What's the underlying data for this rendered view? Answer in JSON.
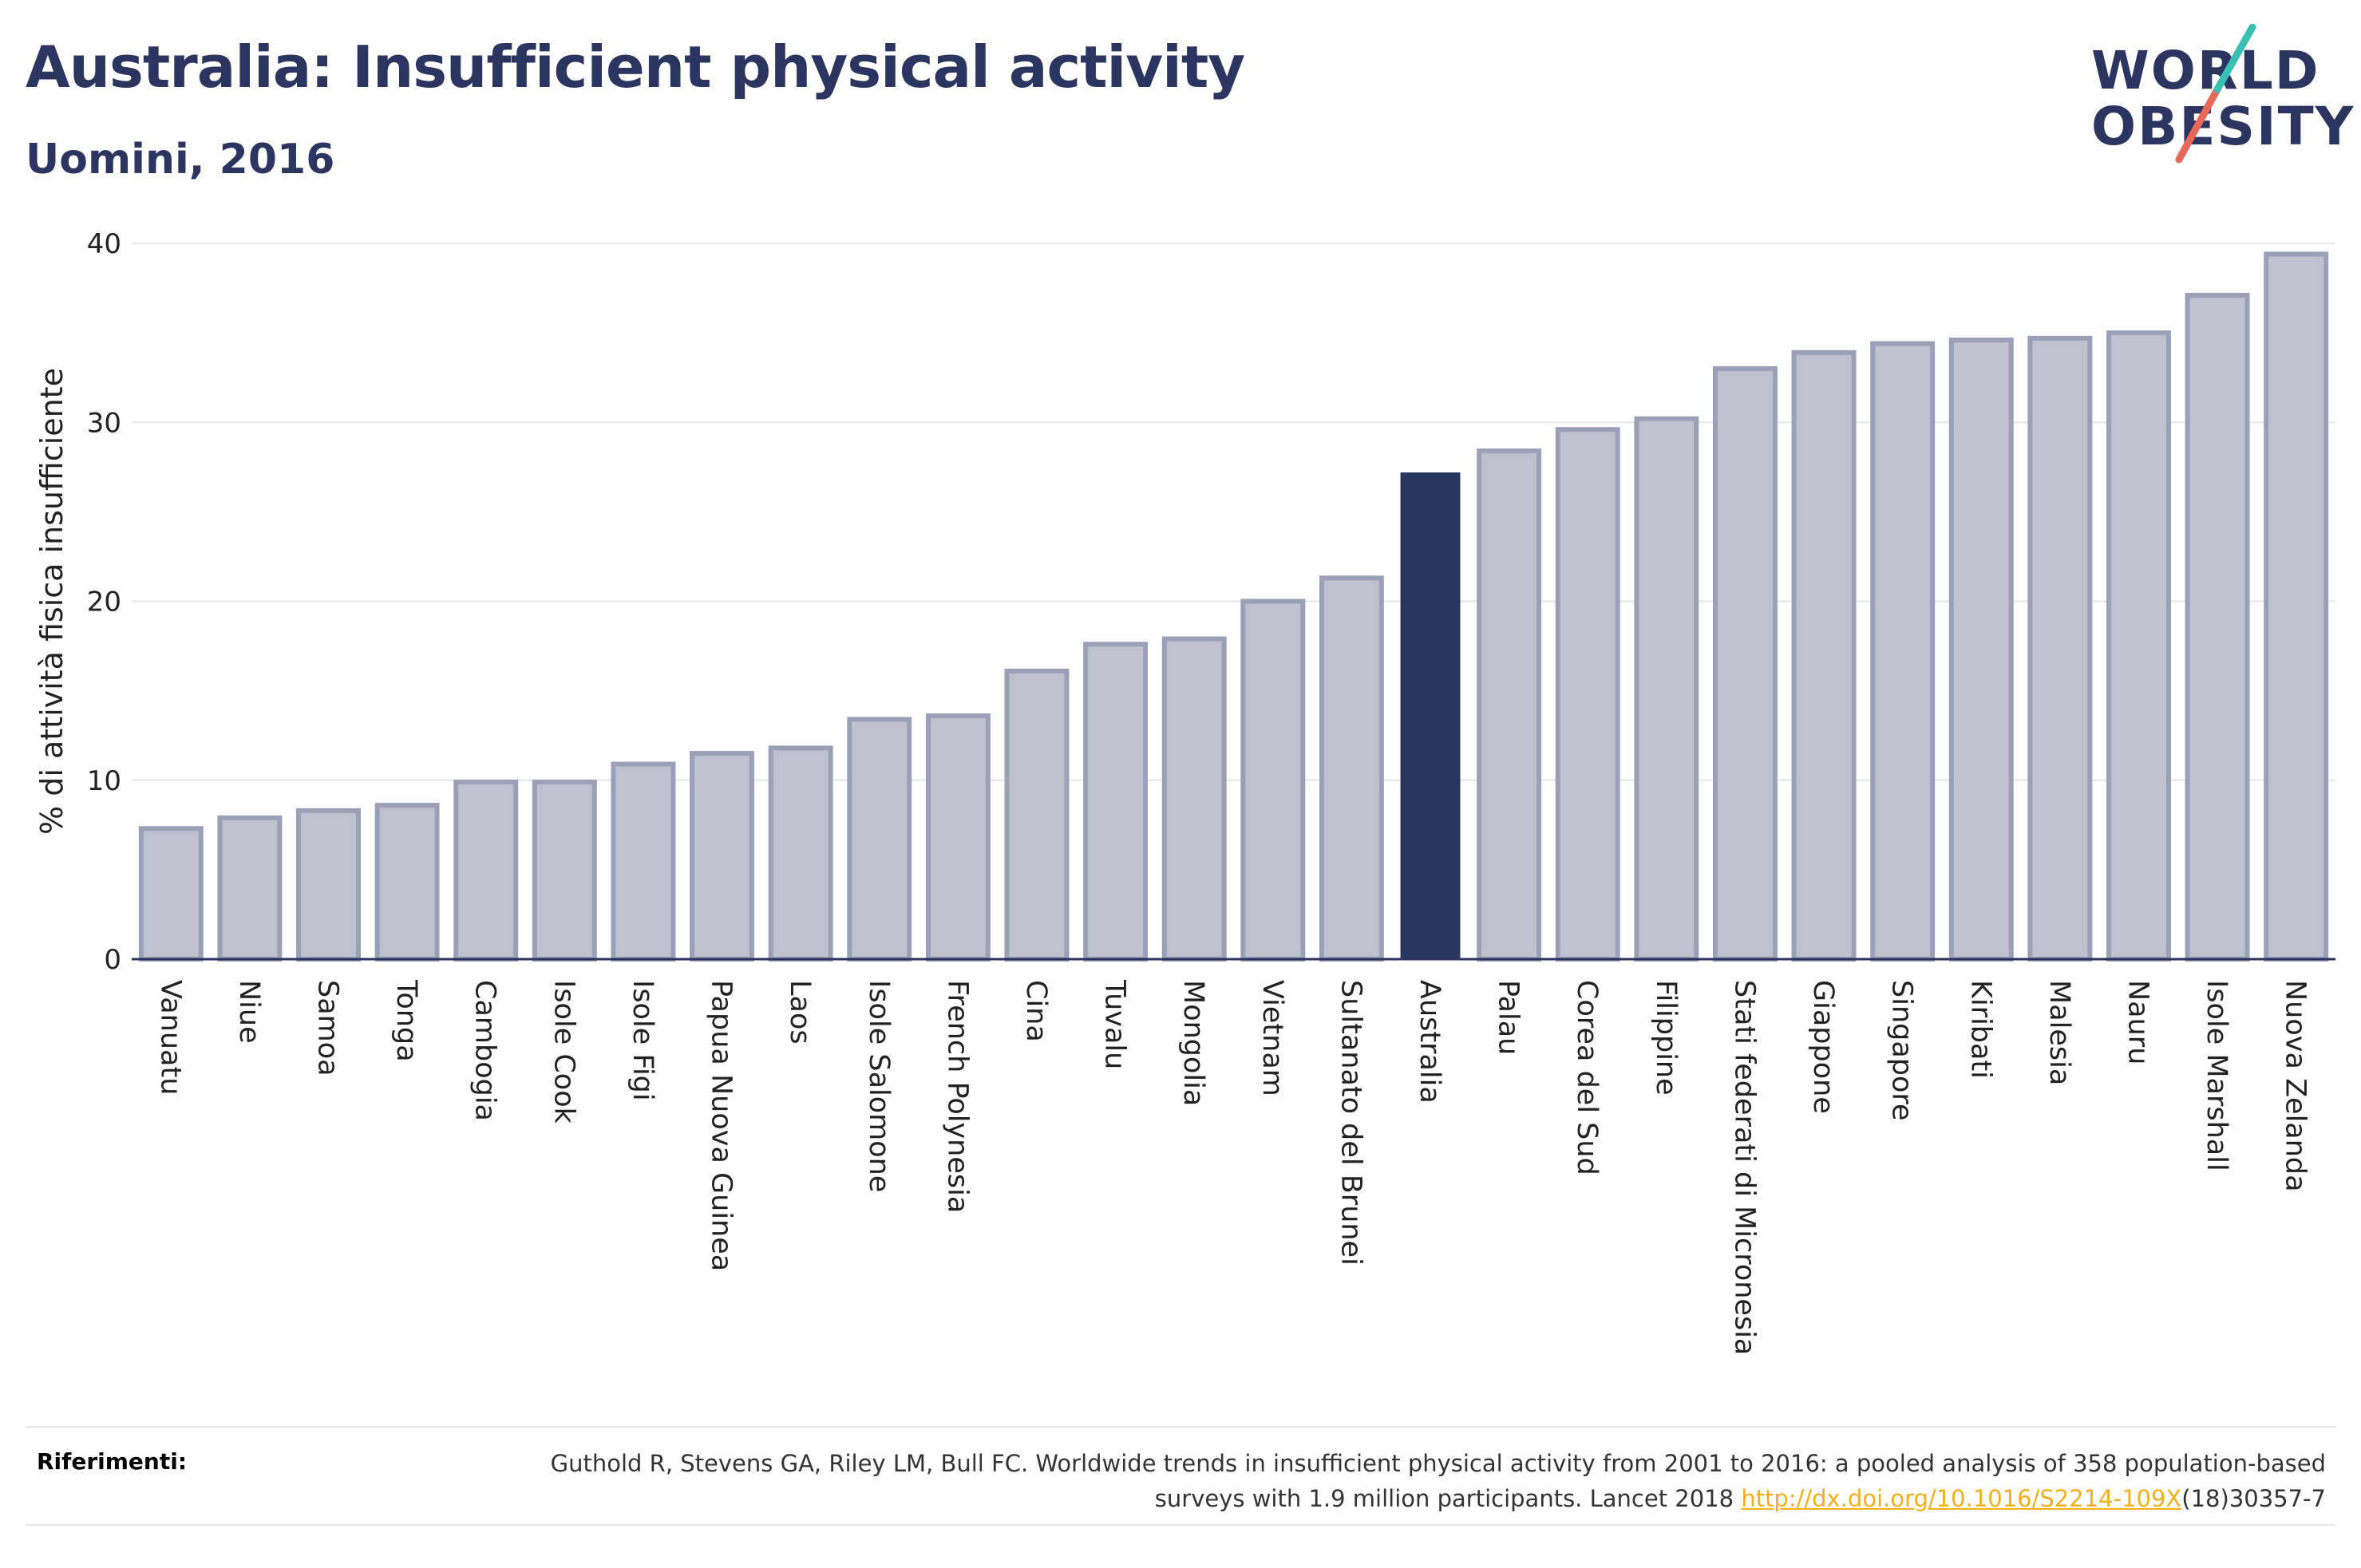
{
  "header": {
    "title": "Australia: Insufficient physical activity",
    "subtitle": "Uomini, 2016"
  },
  "logo": {
    "line1": "WORLD",
    "line2": "OBESITY",
    "colors": {
      "text": "#2b355f",
      "slash_top": "#3bbfb4",
      "slash_bottom": "#e8685a"
    }
  },
  "colors": {
    "bar_default": "#bfc2ce",
    "bar_default_border": "#9aa0b8",
    "bar_highlight": "#2b355f",
    "grid": "#e6e6e6",
    "axis": "#2b355f"
  },
  "chart_data": {
    "type": "bar",
    "title": "",
    "ylabel": "% di attività fisica insufficiente",
    "xlabel": "",
    "ylim": [
      0,
      40
    ],
    "yticks": [
      0,
      10,
      20,
      30,
      40
    ],
    "grid": true,
    "highlight": "Australia",
    "categories": [
      "Vanuatu",
      "Niue",
      "Samoa",
      "Tonga",
      "Cambogia",
      "Isole Cook",
      "Isole Figi",
      "Papua Nuova Guinea",
      "Laos",
      "Isole Salomone",
      "French Polynesia",
      "Cina",
      "Tuvalu",
      "Mongolia",
      "Vietnam",
      "Sultanato del Brunei",
      "Australia",
      "Palau",
      "Corea del Sud",
      "Filippine",
      "Stati federati di Micronesia",
      "Giappone",
      "Singapore",
      "Kiribati",
      "Malesia",
      "Nauru",
      "Isole Marshall",
      "Nuova Zelanda"
    ],
    "values": [
      7.3,
      7.9,
      8.3,
      8.6,
      9.9,
      9.9,
      10.9,
      11.5,
      11.8,
      13.4,
      13.6,
      16.1,
      17.6,
      17.9,
      20.0,
      21.3,
      27.2,
      28.4,
      29.6,
      30.2,
      33.0,
      33.9,
      34.4,
      34.6,
      34.7,
      35.0,
      37.1,
      39.4
    ]
  },
  "references": {
    "label": "Riferimenti:",
    "text_before": "Guthold R, Stevens GA, Riley LM, Bull FC. Worldwide trends in insufficient physical activity from 2001 to 2016: a pooled analysis of 358 population-based surveys with 1.9 million participants. Lancet 2018 ",
    "link": "http://dx.doi.org/10.1016/S2214-109X",
    "text_after": "(18)30357-7"
  }
}
